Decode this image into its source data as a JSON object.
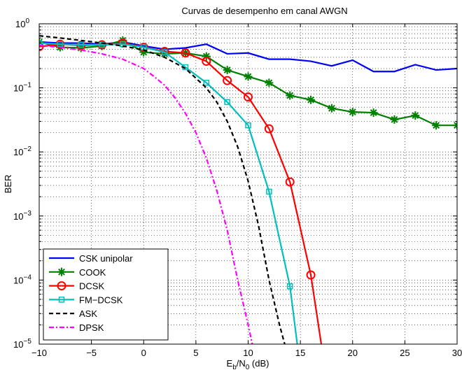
{
  "chart_data": {
    "type": "line",
    "title": "Curvas de desempenho em canal AWGN",
    "xlabel": {
      "main": "E",
      "sub1": "b",
      "mid": "/N",
      "sub2": "0",
      "tail": " (dB)"
    },
    "ylabel": "BER",
    "xlim": [
      -10,
      30
    ],
    "ylim": [
      1e-05,
      1
    ],
    "yscale": "log",
    "grid": true,
    "legend_position": "bottom-left",
    "x_ticks": [
      "-10",
      "-5",
      "0",
      "5",
      "10",
      "15",
      "20",
      "25",
      "30"
    ],
    "y_ticks": [
      {
        "base": "10",
        "exp": "0"
      },
      {
        "base": "10",
        "exp": "-1"
      },
      {
        "base": "10",
        "exp": "-2"
      },
      {
        "base": "10",
        "exp": "-3"
      },
      {
        "base": "10",
        "exp": "-4"
      },
      {
        "base": "10",
        "exp": "-5"
      }
    ],
    "series": [
      {
        "name": "CSK unipolar",
        "color": "#0000ff",
        "dash": "solid",
        "marker": "none",
        "x": [
          -10,
          -8,
          -6,
          -4,
          -2,
          0,
          2,
          4,
          6,
          8,
          10,
          12,
          14,
          16,
          18,
          20,
          22,
          24,
          26,
          28,
          30
        ],
        "y": [
          0.52,
          0.5,
          0.5,
          0.48,
          0.52,
          0.45,
          0.4,
          0.42,
          0.48,
          0.34,
          0.35,
          0.28,
          0.28,
          0.26,
          0.22,
          0.27,
          0.18,
          0.18,
          0.23,
          0.19,
          0.2
        ]
      },
      {
        "name": "COOK",
        "color": "#008000",
        "dash": "solid",
        "marker": "star",
        "x": [
          -10,
          -8,
          -6,
          -4,
          -2,
          0,
          2,
          4,
          6,
          8,
          10,
          12,
          14,
          16,
          18,
          20,
          22,
          24,
          26,
          28,
          30
        ],
        "y": [
          0.52,
          0.43,
          0.42,
          0.45,
          0.55,
          0.36,
          0.34,
          0.35,
          0.31,
          0.19,
          0.15,
          0.12,
          0.076,
          0.065,
          0.048,
          0.042,
          0.041,
          0.032,
          0.037,
          0.026,
          0.026
        ]
      },
      {
        "name": "DCSK",
        "color": "#ff0000",
        "dash": "solid",
        "marker": "circle",
        "x": [
          -10,
          -8,
          -6,
          -4,
          -2,
          0,
          2,
          4,
          6,
          8,
          10,
          12,
          14,
          16,
          17
        ],
        "y": [
          0.44,
          0.48,
          0.46,
          0.47,
          0.5,
          0.43,
          0.37,
          0.35,
          0.26,
          0.13,
          0.072,
          0.023,
          0.0034,
          0.00012,
          1e-05
        ]
      },
      {
        "name": "FM−DCSK",
        "color": "#00bfbf",
        "dash": "solid",
        "marker": "square",
        "x": [
          -10,
          -8,
          -6,
          -4,
          -2,
          0,
          2,
          4,
          6,
          8,
          10,
          12,
          14,
          14.7
        ],
        "y": [
          0.5,
          0.48,
          0.47,
          0.47,
          0.48,
          0.43,
          0.36,
          0.21,
          0.12,
          0.06,
          0.026,
          0.0024,
          8e-05,
          1e-05
        ]
      },
      {
        "name": "ASK",
        "color": "#000000",
        "dash": "dashed",
        "marker": "none",
        "x": [
          -10,
          -8,
          -6,
          -4,
          -2,
          0,
          2,
          4,
          6,
          7,
          8,
          9,
          10,
          11,
          12,
          13,
          13.5
        ],
        "y": [
          0.65,
          0.6,
          0.55,
          0.5,
          0.45,
          0.39,
          0.3,
          0.2,
          0.1,
          0.06,
          0.03,
          0.012,
          0.0035,
          0.0007,
          0.0001,
          2e-05,
          1e-05
        ]
      },
      {
        "name": "DPSK",
        "color": "#ff00ff",
        "dash": "dashdot",
        "marker": "none",
        "x": [
          -10,
          -8,
          -6,
          -4,
          -2,
          0,
          1,
          2,
          3,
          4,
          5,
          6,
          7,
          8,
          9,
          10,
          10.4
        ],
        "y": [
          0.46,
          0.43,
          0.39,
          0.34,
          0.28,
          0.2,
          0.15,
          0.11,
          0.07,
          0.04,
          0.02,
          0.008,
          0.0025,
          0.0006,
          0.0001,
          2e-05,
          1e-05
        ]
      }
    ]
  }
}
